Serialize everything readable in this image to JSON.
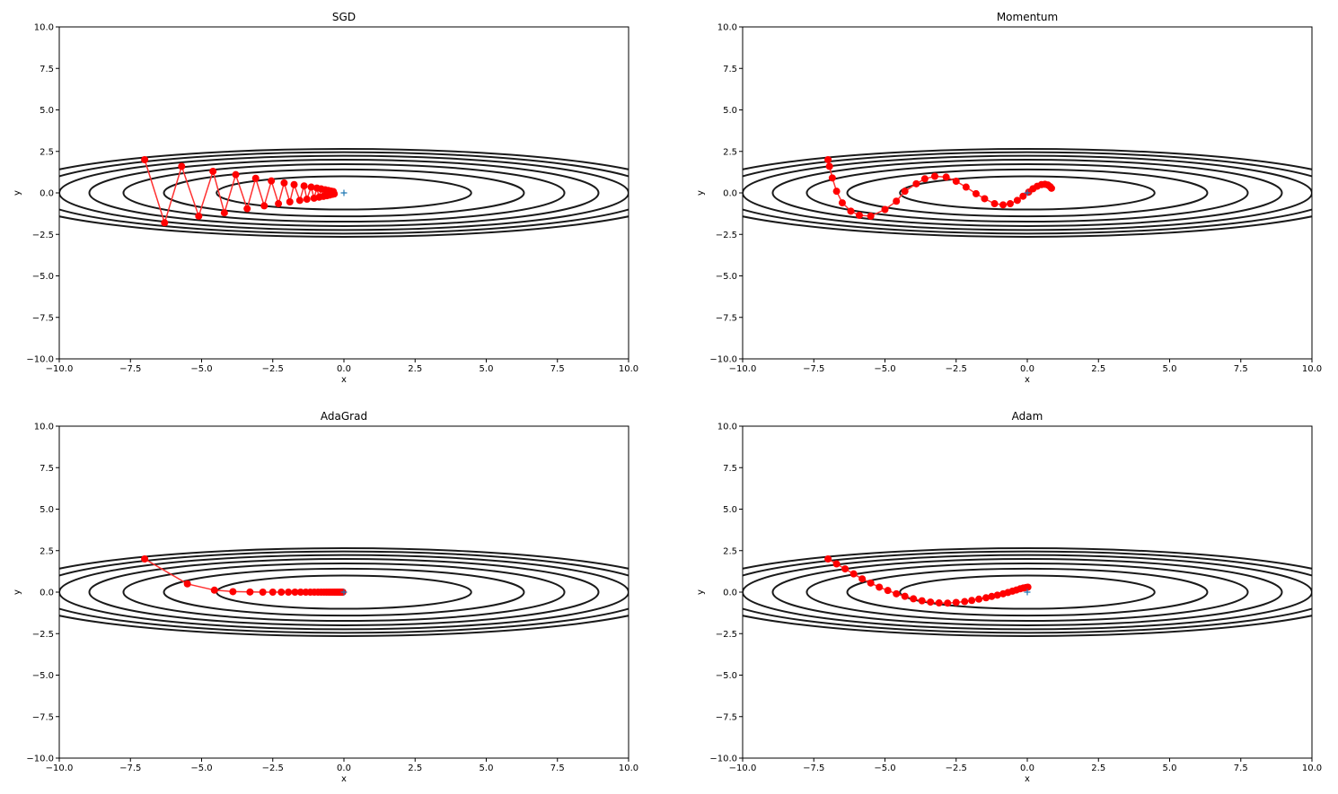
{
  "chart_data": [
    {
      "type": "line",
      "title": "SGD",
      "xlabel": "x",
      "ylabel": "y",
      "xlim": [
        -10,
        10
      ],
      "ylim": [
        -10,
        10
      ],
      "xticks": [
        "−10.0",
        "−7.5",
        "−5.0",
        "−2.5",
        "0.0",
        "2.5",
        "5.0",
        "7.5",
        "10.0"
      ],
      "yticks": [
        "−10.0",
        "−7.5",
        "−5.0",
        "−2.5",
        "0.0",
        "2.5",
        "5.0",
        "7.5",
        "10.0"
      ],
      "grid": false,
      "contour_levels": [
        1,
        2,
        3,
        4,
        5,
        6,
        7
      ],
      "minimum": [
        0,
        0
      ],
      "path": [
        [
          -7.0,
          2.0
        ],
        [
          -6.3,
          -1.8
        ],
        [
          -5.7,
          1.6
        ],
        [
          -5.1,
          -1.4
        ],
        [
          -4.6,
          1.3
        ],
        [
          -4.2,
          -1.2
        ],
        [
          -3.8,
          1.1
        ],
        [
          -3.4,
          -0.95
        ],
        [
          -3.1,
          0.88
        ],
        [
          -2.8,
          -0.78
        ],
        [
          -2.55,
          0.72
        ],
        [
          -2.3,
          -0.65
        ],
        [
          -2.1,
          0.6
        ],
        [
          -1.9,
          -0.54
        ],
        [
          -1.75,
          0.5
        ],
        [
          -1.55,
          -0.45
        ],
        [
          -1.4,
          0.42
        ],
        [
          -1.3,
          -0.38
        ],
        [
          -1.15,
          0.35
        ],
        [
          -1.05,
          -0.32
        ],
        [
          -0.95,
          0.29
        ],
        [
          -0.87,
          -0.26
        ],
        [
          -0.8,
          0.24
        ],
        [
          -0.72,
          -0.21
        ],
        [
          -0.66,
          0.19
        ],
        [
          -0.6,
          -0.17
        ],
        [
          -0.55,
          0.15
        ],
        [
          -0.5,
          -0.13
        ],
        [
          -0.45,
          0.11
        ],
        [
          -0.41,
          -0.09
        ],
        [
          -0.37,
          0.08
        ],
        [
          -0.34,
          -0.06
        ]
      ]
    },
    {
      "type": "line",
      "title": "Momentum",
      "xlabel": "x",
      "ylabel": "y",
      "xlim": [
        -10,
        10
      ],
      "ylim": [
        -10,
        10
      ],
      "xticks": [
        "−10.0",
        "−7.5",
        "−5.0",
        "−2.5",
        "0.0",
        "2.5",
        "5.0",
        "7.5",
        "10.0"
      ],
      "yticks": [
        "−10.0",
        "−7.5",
        "−5.0",
        "−2.5",
        "0.0",
        "2.5",
        "5.0",
        "7.5",
        "10.0"
      ],
      "grid": false,
      "contour_levels": [
        1,
        2,
        3,
        4,
        5,
        6,
        7
      ],
      "minimum": [
        0,
        0
      ],
      "path": [
        [
          -7.0,
          2.0
        ],
        [
          -6.95,
          1.6
        ],
        [
          -6.85,
          0.9
        ],
        [
          -6.7,
          0.1
        ],
        [
          -6.5,
          -0.6
        ],
        [
          -6.2,
          -1.1
        ],
        [
          -5.9,
          -1.35
        ],
        [
          -5.5,
          -1.4
        ],
        [
          -5.0,
          -1.0
        ],
        [
          -4.6,
          -0.5
        ],
        [
          -4.3,
          0.1
        ],
        [
          -3.9,
          0.55
        ],
        [
          -3.6,
          0.85
        ],
        [
          -3.25,
          1.0
        ],
        [
          -2.85,
          0.95
        ],
        [
          -2.5,
          0.7
        ],
        [
          -2.15,
          0.35
        ],
        [
          -1.8,
          -0.05
        ],
        [
          -1.5,
          -0.35
        ],
        [
          -1.15,
          -0.65
        ],
        [
          -0.85,
          -0.72
        ],
        [
          -0.6,
          -0.65
        ],
        [
          -0.35,
          -0.45
        ],
        [
          -0.15,
          -0.2
        ],
        [
          0.05,
          0.05
        ],
        [
          0.2,
          0.25
        ],
        [
          0.35,
          0.4
        ],
        [
          0.5,
          0.5
        ],
        [
          0.62,
          0.52
        ],
        [
          0.72,
          0.48
        ],
        [
          0.8,
          0.38
        ],
        [
          0.85,
          0.28
        ]
      ]
    },
    {
      "type": "line",
      "title": "AdaGrad",
      "xlabel": "x",
      "ylabel": "y",
      "xlim": [
        -10,
        10
      ],
      "ylim": [
        -10,
        10
      ],
      "xticks": [
        "−10.0",
        "−7.5",
        "−5.0",
        "−2.5",
        "0.0",
        "2.5",
        "5.0",
        "7.5",
        "10.0"
      ],
      "yticks": [
        "−10.0",
        "−7.5",
        "−5.0",
        "−2.5",
        "0.0",
        "2.5",
        "5.0",
        "7.5",
        "10.0"
      ],
      "grid": false,
      "contour_levels": [
        1,
        2,
        3,
        4,
        5,
        6,
        7
      ],
      "minimum": [
        0,
        0
      ],
      "path": [
        [
          -7.0,
          2.0
        ],
        [
          -5.5,
          0.5
        ],
        [
          -4.55,
          0.12
        ],
        [
          -3.9,
          0.03
        ],
        [
          -3.3,
          0.01
        ],
        [
          -2.85,
          0.0
        ],
        [
          -2.5,
          0.0
        ],
        [
          -2.2,
          0.0
        ],
        [
          -1.95,
          0.0
        ],
        [
          -1.72,
          0.0
        ],
        [
          -1.52,
          0.0
        ],
        [
          -1.34,
          0.0
        ],
        [
          -1.18,
          0.0
        ],
        [
          -1.04,
          0.0
        ],
        [
          -0.91,
          0.0
        ],
        [
          -0.8,
          0.0
        ],
        [
          -0.7,
          0.0
        ],
        [
          -0.61,
          0.0
        ],
        [
          -0.53,
          0.0
        ],
        [
          -0.46,
          0.0
        ],
        [
          -0.39,
          0.0
        ],
        [
          -0.33,
          0.0
        ],
        [
          -0.28,
          0.0
        ],
        [
          -0.23,
          0.0
        ],
        [
          -0.19,
          0.0
        ],
        [
          -0.15,
          0.0
        ],
        [
          -0.12,
          0.0
        ],
        [
          -0.09,
          0.0
        ],
        [
          -0.06,
          0.0
        ],
        [
          -0.04,
          0.0
        ]
      ]
    },
    {
      "type": "line",
      "title": "Adam",
      "xlabel": "x",
      "ylabel": "y",
      "xlim": [
        -10,
        10
      ],
      "ylim": [
        -10,
        10
      ],
      "xticks": [
        "−10.0",
        "−7.5",
        "−5.0",
        "−2.5",
        "0.0",
        "2.5",
        "5.0",
        "7.5",
        "10.0"
      ],
      "yticks": [
        "−10.0",
        "−7.5",
        "−5.0",
        "−2.5",
        "0.0",
        "2.5",
        "5.0",
        "7.5",
        "10.0"
      ],
      "grid": false,
      "contour_levels": [
        1,
        2,
        3,
        4,
        5,
        6,
        7
      ],
      "minimum": [
        0,
        0
      ],
      "path": [
        [
          -7.0,
          2.0
        ],
        [
          -6.7,
          1.7
        ],
        [
          -6.4,
          1.4
        ],
        [
          -6.1,
          1.1
        ],
        [
          -5.8,
          0.8
        ],
        [
          -5.5,
          0.55
        ],
        [
          -5.2,
          0.3
        ],
        [
          -4.9,
          0.1
        ],
        [
          -4.6,
          -0.1
        ],
        [
          -4.3,
          -0.25
        ],
        [
          -4.0,
          -0.4
        ],
        [
          -3.7,
          -0.52
        ],
        [
          -3.4,
          -0.6
        ],
        [
          -3.1,
          -0.65
        ],
        [
          -2.8,
          -0.66
        ],
        [
          -2.5,
          -0.62
        ],
        [
          -2.2,
          -0.57
        ],
        [
          -1.95,
          -0.5
        ],
        [
          -1.7,
          -0.42
        ],
        [
          -1.45,
          -0.34
        ],
        [
          -1.25,
          -0.26
        ],
        [
          -1.05,
          -0.18
        ],
        [
          -0.85,
          -0.1
        ],
        [
          -0.68,
          -0.02
        ],
        [
          -0.52,
          0.06
        ],
        [
          -0.38,
          0.13
        ],
        [
          -0.25,
          0.2
        ],
        [
          -0.14,
          0.25
        ],
        [
          -0.05,
          0.28
        ],
        [
          0.02,
          0.3
        ]
      ]
    }
  ],
  "colors": {
    "path": "#ff0000",
    "path_line": "#ff3030",
    "contour": "#1a1a1a",
    "minimum_marker": "#1f77b4",
    "axes": "#000000"
  }
}
